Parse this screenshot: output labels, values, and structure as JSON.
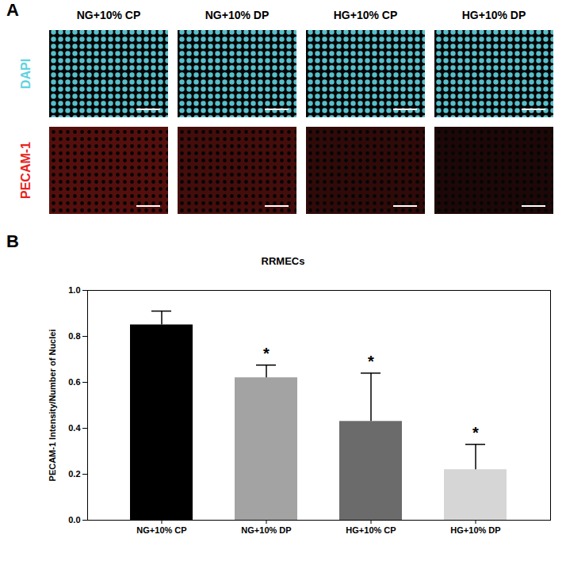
{
  "panel_a": {
    "label": "A",
    "columns": [
      "NG+10% CP",
      "NG+10% DP",
      "HG+10% CP",
      "HG+10% DP"
    ],
    "rows": [
      {
        "label": "DAPI",
        "color": "#5fd3e0"
      },
      {
        "label": "PECAM-1",
        "color": "#e8231c"
      }
    ]
  },
  "chart_data": {
    "type": "bar",
    "panel_label": "B",
    "title": "RRMECs",
    "y_label": "PECAM-1 Intensity/Number of Nuclei",
    "categories": [
      "NG+10% CP",
      "NG+10% DP",
      "HG+10% CP",
      "HG+10% DP"
    ],
    "values": [
      0.85,
      0.62,
      0.43,
      0.22
    ],
    "errors": [
      0.06,
      0.055,
      0.21,
      0.11
    ],
    "colors": [
      "#000000",
      "#a3a3a3",
      "#6b6b6b",
      "#d6d6d6"
    ],
    "ylim": [
      0,
      1.0
    ],
    "yticks": [
      {
        "value": 0,
        "label": "0.0"
      },
      {
        "value": 0.2,
        "label": "0.2"
      },
      {
        "value": 0.4,
        "label": "0.4"
      },
      {
        "value": 0.6,
        "label": "0.6"
      },
      {
        "value": 0.8,
        "label": "0.8"
      },
      {
        "value": 1.0,
        "label": "1.0"
      }
    ],
    "annotations": [
      {
        "category": "NG+10% DP",
        "text": "*"
      },
      {
        "category": "HG+10% CP",
        "text": "*"
      },
      {
        "category": "HG+10% DP",
        "text": "*"
      }
    ],
    "grid": false,
    "data_labels": false
  }
}
